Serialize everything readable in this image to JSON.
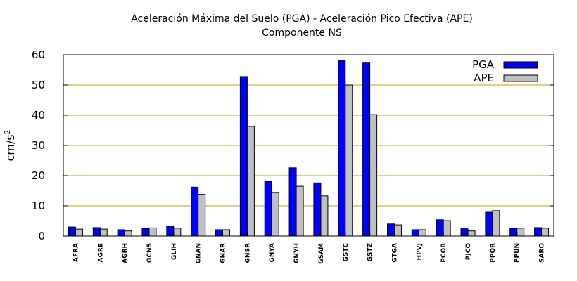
{
  "chart_data": {
    "type": "bar",
    "title": "Aceleración Máxima del Suelo (PGA) -  Aceleración Pico Efectiva (APE)",
    "subtitle": "Componente NS",
    "ylabel": "cm/s",
    "ylabel_superscript": "2",
    "xlabel": "",
    "ylim": [
      0,
      60
    ],
    "yticks": [
      "0",
      "10",
      "20",
      "30",
      "40",
      "50",
      "60"
    ],
    "grid": true,
    "legend_position": "top-right",
    "categories": [
      "AFRA",
      "AGRE",
      "AGRH",
      "GCNS",
      "GLIH",
      "GNAN",
      "GNAR",
      "GNSR",
      "GNYA",
      "GNYH",
      "GSAM",
      "GSTC",
      "GSTZ",
      "GTGA",
      "HPVJ",
      "PCOB",
      "PJCO",
      "PPQR",
      "PPUN",
      "SARO"
    ],
    "series": [
      {
        "name": "PGA",
        "color": "#0000ff",
        "values": [
          3.0,
          2.8,
          2.1,
          2.5,
          3.3,
          16.2,
          2.1,
          52.8,
          18.1,
          22.6,
          17.6,
          58.0,
          57.5,
          4.0,
          2.1,
          5.4,
          2.4,
          7.9,
          2.6,
          2.8
        ]
      },
      {
        "name": "APE",
        "color": "#c0c0c0",
        "values": [
          2.3,
          2.3,
          1.7,
          2.7,
          2.6,
          13.8,
          2.1,
          36.3,
          14.4,
          16.5,
          13.3,
          50.0,
          40.2,
          3.7,
          2.1,
          5.1,
          1.7,
          8.4,
          2.6,
          2.6
        ]
      }
    ],
    "grid_color": "#c8a000"
  }
}
